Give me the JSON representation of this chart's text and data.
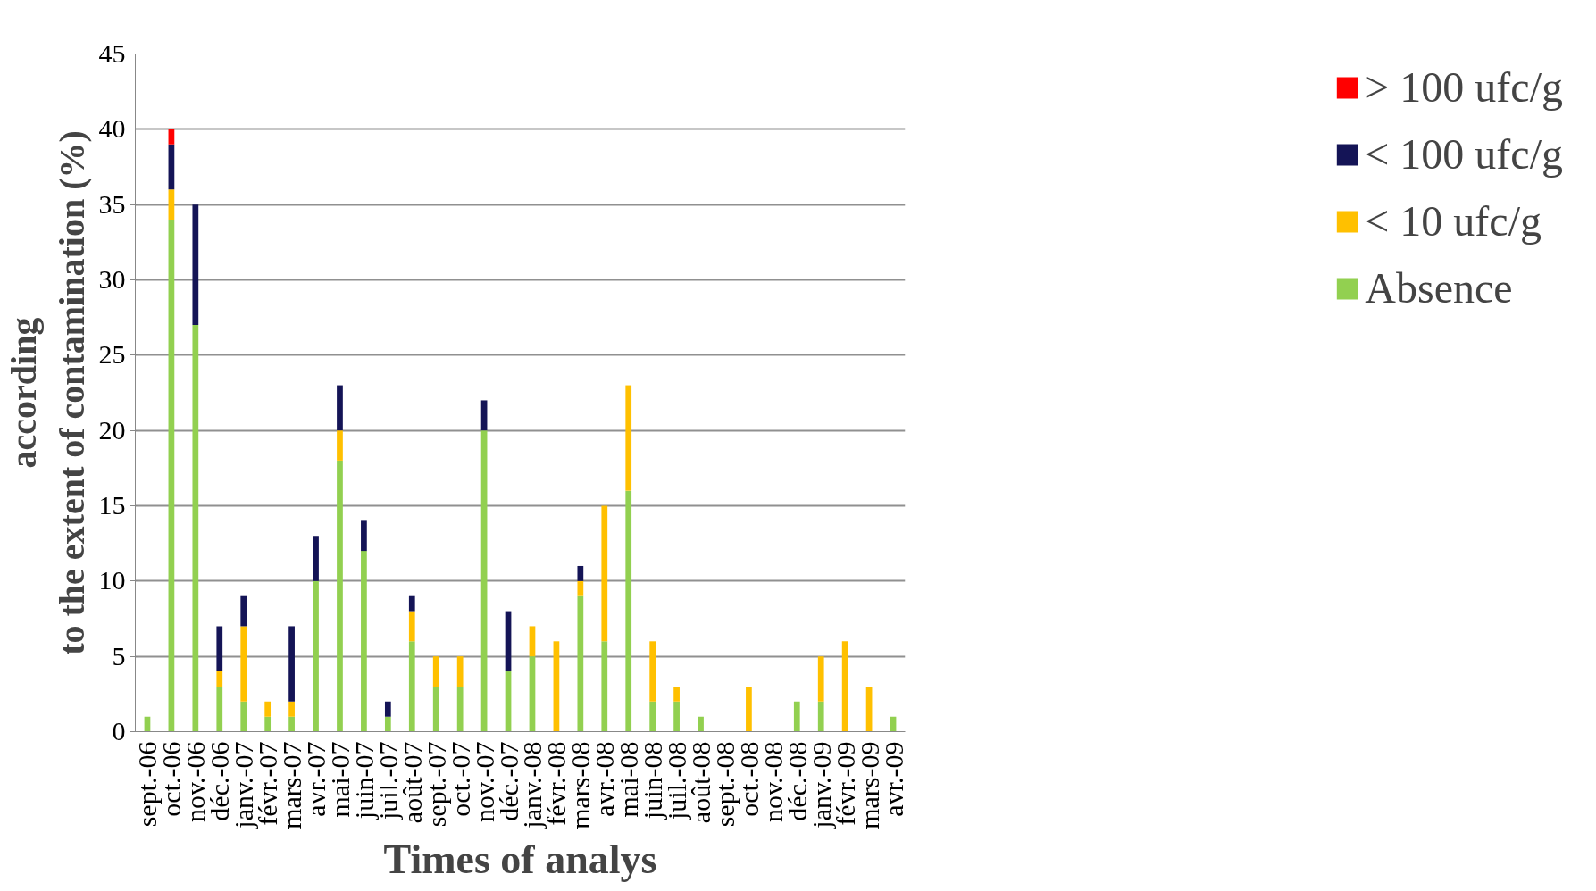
{
  "chart_data": {
    "type": "bar",
    "stacked": true,
    "xlabel": "Times of analys",
    "ylabel": "according\nto the extent of contamination (%)",
    "categories": [
      "sept.-06",
      "oct.-06",
      "nov.-06",
      "déc.-06",
      "janv.-07",
      "févr.-07",
      "mars-07",
      "avr.-07",
      "mai-07",
      "juin-07",
      "juil.-07",
      "août-07",
      "sept.-07",
      "oct.-07",
      "nov.-07",
      "déc.-07",
      "janv.-08",
      "févr.-08",
      "mars-08",
      "avr.-08",
      "mai-08",
      "juin-08",
      "juil.-08",
      "août-08",
      "sept.-08",
      "oct.-08",
      "nov.-08",
      "déc.-08",
      "janv.-09",
      "févr.-09",
      "mars-09",
      "avr.-09"
    ],
    "series": [
      {
        "name": "Absence",
        "color": "#92d050",
        "values": [
          1,
          34,
          27,
          3,
          2,
          1,
          1,
          10,
          18,
          12,
          1,
          6,
          3,
          3,
          20,
          4,
          5,
          0,
          9,
          6,
          16,
          2,
          2,
          1,
          0,
          0,
          0,
          2,
          2,
          0,
          0,
          1
        ]
      },
      {
        "name": "< 10 ufc/g",
        "color": "#ffc000",
        "values": [
          0,
          2,
          0,
          1,
          5,
          1,
          1,
          0,
          2,
          0,
          0,
          2,
          2,
          2,
          0,
          0,
          2,
          6,
          1,
          9,
          7,
          4,
          1,
          0,
          0,
          3,
          0,
          0,
          3,
          6,
          3,
          0
        ]
      },
      {
        "name": "< 100 ufc/g",
        "color": "#141456",
        "values": [
          0,
          3,
          8,
          3,
          2,
          0,
          5,
          3,
          3,
          2,
          1,
          1,
          0,
          0,
          2,
          4,
          0,
          0,
          1,
          0,
          0,
          0,
          0,
          0,
          0,
          0,
          0,
          0,
          0,
          0,
          0,
          0
        ]
      },
      {
        "name": "> 100 ufc/g",
        "color": "#ff0000",
        "values": [
          0,
          1,
          0,
          0,
          0,
          0,
          0,
          0,
          0,
          0,
          0,
          0,
          0,
          0,
          0,
          0,
          0,
          0,
          0,
          0,
          0,
          0,
          0,
          0,
          0,
          0,
          0,
          0,
          0,
          0,
          0,
          0
        ]
      }
    ],
    "ylim": [
      0,
      45
    ],
    "yticks": [
      0,
      5,
      10,
      15,
      20,
      25,
      30,
      35,
      40,
      45
    ],
    "grid": "y",
    "legend": "right"
  }
}
